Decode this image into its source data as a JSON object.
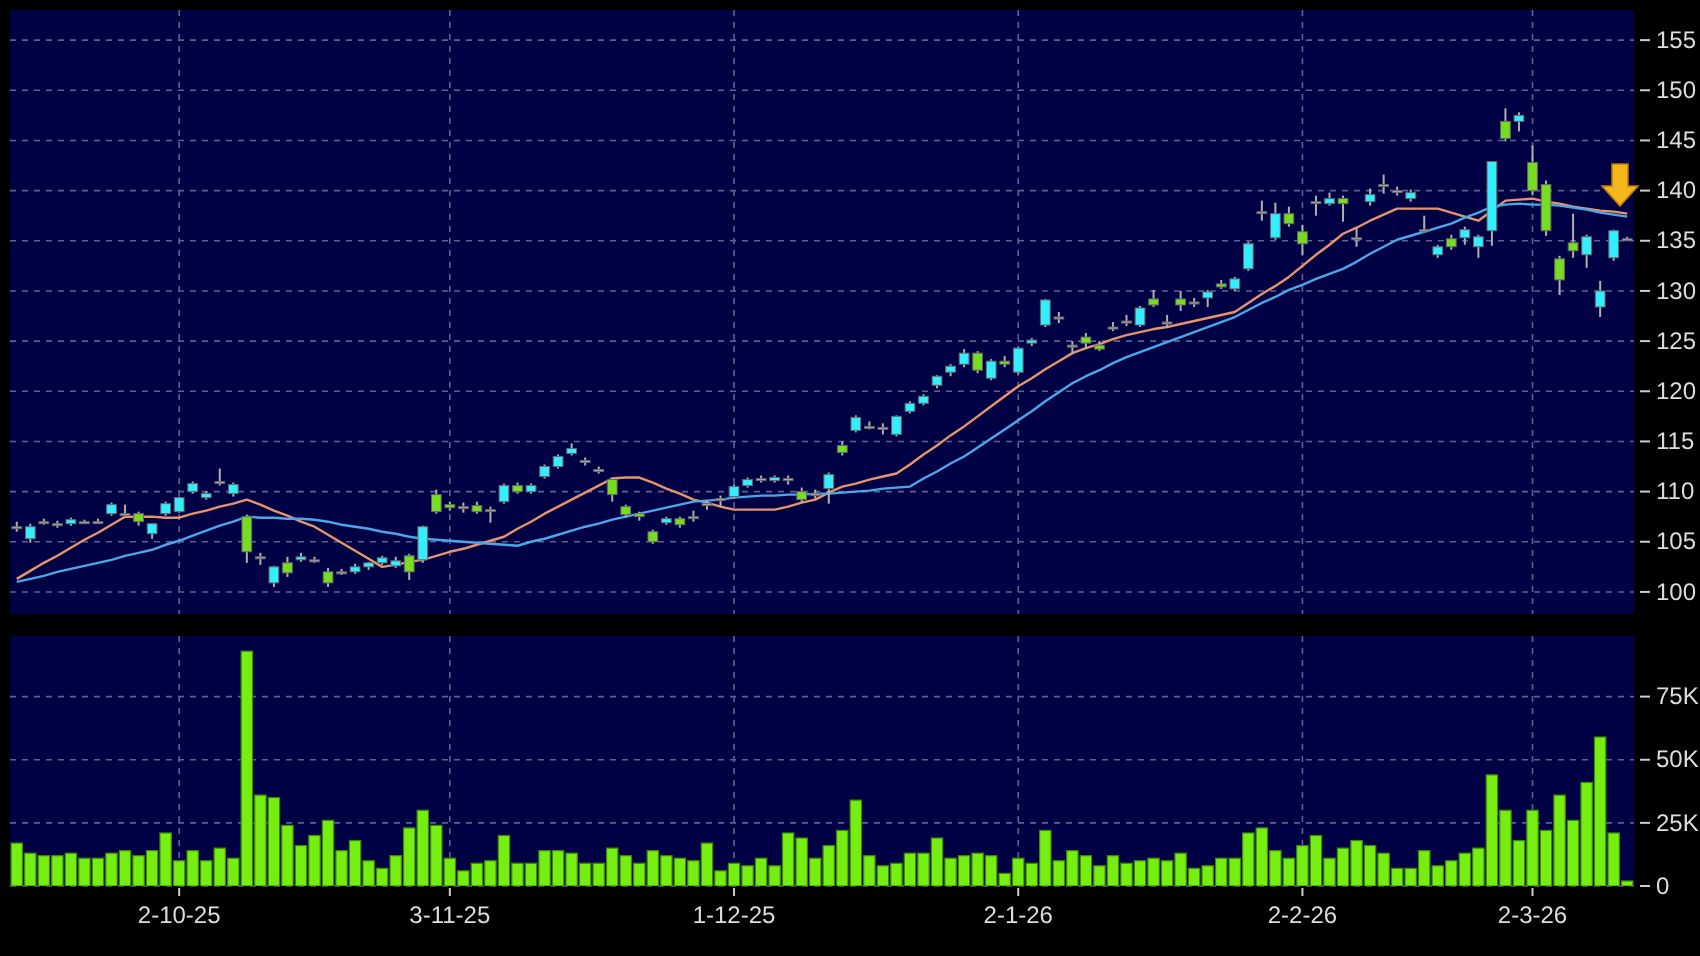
{
  "chart_data": [
    {
      "type": "candlestick",
      "tick_labels": "y",
      "grid": true,
      "categories": [
        null,
        null,
        null,
        null,
        null,
        null,
        null,
        null,
        null,
        null,
        null,
        null,
        null,
        null,
        null,
        null,
        null,
        null,
        null,
        null,
        null,
        null,
        null,
        null,
        null,
        null,
        null,
        null,
        null,
        null,
        null,
        null,
        null,
        null,
        null,
        null,
        null,
        null,
        null,
        null,
        null,
        null,
        null,
        null,
        null,
        null,
        null,
        null,
        null,
        null,
        null,
        null,
        null,
        null,
        null,
        null,
        null,
        null,
        null,
        null,
        null,
        null,
        null,
        null,
        null,
        null,
        null,
        null,
        null,
        null,
        null,
        null,
        null,
        null,
        null,
        null,
        null,
        null,
        null,
        null,
        null,
        null,
        null,
        null,
        null,
        null,
        null,
        null,
        null,
        null,
        null,
        null,
        null,
        null,
        null,
        null,
        null,
        null,
        null,
        null,
        null,
        null,
        null,
        null,
        null,
        null,
        null,
        null,
        null,
        null,
        null,
        null,
        null,
        null,
        null,
        null,
        null,
        null,
        null,
        null
      ],
      "ylim": [
        97.8,
        158
      ],
      "yticks": [
        100,
        105,
        110,
        115,
        120,
        125,
        130,
        135,
        140,
        145,
        150,
        155
      ],
      "ohlc": [
        [
          106.5,
          107,
          106,
          106.5
        ],
        [
          105.3,
          106.8,
          104.9,
          106.5
        ],
        [
          107,
          107.3,
          106.7,
          107
        ],
        [
          106.8,
          107.1,
          106.4,
          106.8
        ],
        [
          106.8,
          107.4,
          106.6,
          107.2
        ],
        [
          107,
          107.2,
          106.8,
          107
        ],
        [
          107,
          107.3,
          106.8,
          107
        ],
        [
          107.8,
          108.9,
          107.6,
          108.7
        ],
        [
          107.8,
          108.7,
          107.5,
          107.8
        ],
        [
          107.8,
          108,
          106.6,
          107
        ],
        [
          105.8,
          106.8,
          105.3,
          106.8
        ],
        [
          107.8,
          109,
          107.6,
          108.8
        ],
        [
          108,
          109.5,
          107.9,
          109.4
        ],
        [
          110,
          111,
          109.8,
          110.8
        ],
        [
          109.4,
          110,
          109.2,
          109.8
        ],
        [
          111,
          112.3,
          110.6,
          111
        ],
        [
          109.8,
          110.9,
          109.5,
          110.7
        ],
        [
          107.5,
          107.7,
          102.9,
          104
        ],
        [
          103.5,
          103.9,
          102.7,
          103.5
        ],
        [
          100.9,
          102.6,
          100.5,
          102.5
        ],
        [
          102.9,
          103.5,
          101.5,
          101.9
        ],
        [
          103.2,
          103.9,
          103,
          103.5
        ],
        [
          103.2,
          103.5,
          102.9,
          103.2
        ],
        [
          102,
          102.4,
          100.5,
          100.9
        ],
        [
          102,
          102.3,
          101.7,
          102
        ],
        [
          102,
          102.8,
          101.8,
          102.5
        ],
        [
          102.5,
          103,
          102.2,
          102.9
        ],
        [
          102.9,
          103.6,
          102.7,
          103.4
        ],
        [
          102.6,
          103.5,
          102.4,
          103.1
        ],
        [
          103.6,
          103.8,
          101.2,
          102
        ],
        [
          103.2,
          106.6,
          102.9,
          106.5
        ],
        [
          109.7,
          110.2,
          107.8,
          108
        ],
        [
          108.7,
          109,
          108.1,
          108.4
        ],
        [
          108.5,
          108.9,
          107.9,
          108.5
        ],
        [
          108.6,
          109,
          107.8,
          108
        ],
        [
          108.2,
          108.5,
          106.9,
          108.2
        ],
        [
          109,
          110.8,
          108.8,
          110.6
        ],
        [
          110.6,
          110.9,
          109.8,
          110
        ],
        [
          110,
          110.8,
          109.8,
          110.6
        ],
        [
          111.5,
          112.7,
          111.3,
          112.5
        ],
        [
          112.5,
          113.7,
          112.3,
          113.5
        ],
        [
          113.8,
          114.8,
          113.6,
          114.3
        ],
        [
          113.1,
          113.4,
          112.6,
          113.1
        ],
        [
          112.2,
          112.5,
          111.8,
          112.2
        ],
        [
          111.2,
          111.4,
          109,
          109.7
        ],
        [
          108.5,
          108.7,
          107.4,
          107.7
        ],
        [
          107.8,
          108,
          107.1,
          107.5
        ],
        [
          106,
          106.2,
          104.8,
          105
        ],
        [
          106.9,
          107.5,
          106.7,
          107.3
        ],
        [
          107.3,
          107.5,
          106.4,
          106.7
        ],
        [
          107.5,
          108.1,
          107,
          107.5
        ],
        [
          108.8,
          109.1,
          108.2,
          108.8
        ],
        [
          109.3,
          109.6,
          108.5,
          109.3
        ],
        [
          109.5,
          110.7,
          109.3,
          110.5
        ],
        [
          110.6,
          111.4,
          110.4,
          111.2
        ],
        [
          111.3,
          111.6,
          110.9,
          111.3
        ],
        [
          111.1,
          111.6,
          110.9,
          111.4
        ],
        [
          111.3,
          111.6,
          110.7,
          111.3
        ],
        [
          110,
          110.4,
          108.9,
          109.2
        ],
        [
          109.8,
          110.2,
          109.3,
          109.8
        ],
        [
          110.3,
          111.9,
          108.8,
          111.7
        ],
        [
          114.6,
          115,
          113.6,
          113.9
        ],
        [
          116.1,
          117.6,
          115.9,
          117.4
        ],
        [
          116.5,
          117,
          116.2,
          116.5
        ],
        [
          116.4,
          116.8,
          115.7,
          116.4
        ],
        [
          115.7,
          117.6,
          115.5,
          117.5
        ],
        [
          118,
          119,
          117.8,
          118.8
        ],
        [
          118.8,
          119.7,
          118.6,
          119.5
        ],
        [
          120.6,
          121.6,
          120.3,
          121.5
        ],
        [
          121.9,
          122.7,
          121.5,
          122.5
        ],
        [
          122.7,
          124.2,
          122.4,
          123.8
        ],
        [
          123.8,
          124,
          121.8,
          122.1
        ],
        [
          121.3,
          123.2,
          121.1,
          123
        ],
        [
          123,
          123.5,
          122.4,
          122.7
        ],
        [
          121.9,
          124.4,
          121.7,
          124.3
        ],
        [
          124.8,
          125.3,
          124.5,
          125.1
        ],
        [
          126.6,
          129.2,
          126.4,
          129.1
        ],
        [
          127.4,
          127.9,
          126.8,
          127.4
        ],
        [
          124.6,
          125,
          123.7,
          124.6
        ],
        [
          125.4,
          125.8,
          124.2,
          124.8
        ],
        [
          124.6,
          125,
          124,
          124.2
        ],
        [
          126.4,
          126.9,
          126,
          126.4
        ],
        [
          127,
          127.6,
          126.5,
          127
        ],
        [
          126.6,
          128.5,
          126.4,
          128.3
        ],
        [
          129.2,
          130.1,
          128.4,
          128.6
        ],
        [
          126.9,
          127.6,
          126.3,
          126.9
        ],
        [
          129.2,
          130,
          128,
          128.6
        ],
        [
          128.9,
          129.3,
          128.4,
          128.9
        ],
        [
          129.3,
          130.1,
          128.4,
          129.9
        ],
        [
          130.7,
          131.1,
          130.2,
          130.4
        ],
        [
          130.2,
          131.4,
          130,
          131.2
        ],
        [
          132.2,
          134.9,
          132,
          134.7
        ],
        [
          137.9,
          139,
          137,
          137.9
        ],
        [
          135.3,
          138.8,
          135.1,
          137.7
        ],
        [
          137.7,
          138.4,
          136.4,
          136.7
        ],
        [
          135.9,
          136.6,
          133.6,
          134.7
        ],
        [
          138.9,
          139.5,
          137.5,
          138.9
        ],
        [
          138.7,
          139.8,
          138.5,
          139.2
        ],
        [
          139.2,
          139.5,
          136.9,
          138.7
        ],
        [
          135.3,
          136.3,
          134.4,
          135.3
        ],
        [
          138.9,
          140.2,
          138.5,
          139.6
        ],
        [
          140.6,
          141.6,
          139.7,
          140.6
        ],
        [
          140,
          140.4,
          139.5,
          140
        ],
        [
          139.2,
          140.1,
          138.9,
          139.8
        ],
        [
          136.1,
          137.5,
          135.9,
          136.1
        ],
        [
          133.6,
          134.6,
          133.3,
          134.4
        ],
        [
          135.2,
          135.6,
          134.1,
          134.4
        ],
        [
          135.3,
          136.4,
          134.6,
          136.1
        ],
        [
          134.4,
          135.6,
          133.3,
          135.4
        ],
        [
          136,
          142.9,
          134.5,
          142.9
        ],
        [
          146.9,
          148.2,
          144.9,
          145.2
        ],
        [
          146.9,
          147.8,
          145.9,
          147.5
        ],
        [
          142.8,
          144.5,
          139.6,
          140
        ],
        [
          140.6,
          141,
          135.5,
          136
        ],
        [
          133.2,
          133.5,
          129.6,
          131.1
        ],
        [
          134.8,
          137.7,
          133.3,
          134
        ],
        [
          133.6,
          135.6,
          132.3,
          135.4
        ],
        [
          128.4,
          131,
          127.4,
          130
        ],
        [
          133.3,
          136.1,
          133,
          136
        ],
        [
          135.2,
          135.4,
          135,
          135.2
        ]
      ],
      "colors": [
        "#aaaaaa",
        "#33eeff",
        "#aaaaaa",
        "#aaaaaa",
        "#33eeff",
        "#aaaaaa",
        "#aaaaaa",
        "#33eeff",
        "#aaaaaa",
        "#77dd22",
        "#33eeff",
        "#33eeff",
        "#33eeff",
        "#33eeff",
        "#33eeff",
        "#aaaaaa",
        "#33eeff",
        "#77dd22",
        "#aaaaaa",
        "#33eeff",
        "#77dd22",
        "#33eeff",
        "#aaaaaa",
        "#77dd22",
        "#aaaaaa",
        "#33eeff",
        "#33eeff",
        "#33eeff",
        "#33eeff",
        "#77dd22",
        "#33eeff",
        "#77dd22",
        "#77dd22",
        "#aaaaaa",
        "#77dd22",
        "#aaaaaa",
        "#33eeff",
        "#77dd22",
        "#33eeff",
        "#33eeff",
        "#33eeff",
        "#33eeff",
        "#aaaaaa",
        "#aaaaaa",
        "#77dd22",
        "#77dd22",
        "#77dd22",
        "#77dd22",
        "#33eeff",
        "#77dd22",
        "#aaaaaa",
        "#aaaaaa",
        "#aaaaaa",
        "#33eeff",
        "#33eeff",
        "#aaaaaa",
        "#33eeff",
        "#aaaaaa",
        "#77dd22",
        "#aaaaaa",
        "#33eeff",
        "#77dd22",
        "#33eeff",
        "#aaaaaa",
        "#aaaaaa",
        "#33eeff",
        "#33eeff",
        "#33eeff",
        "#33eeff",
        "#33eeff",
        "#33eeff",
        "#77dd22",
        "#33eeff",
        "#77dd22",
        "#33eeff",
        "#33eeff",
        "#33eeff",
        "#aaaaaa",
        "#aaaaaa",
        "#77dd22",
        "#77dd22",
        "#aaaaaa",
        "#aaaaaa",
        "#33eeff",
        "#77dd22",
        "#aaaaaa",
        "#77dd22",
        "#aaaaaa",
        "#33eeff",
        "#77dd22",
        "#33eeff",
        "#33eeff",
        "#aaaaaa",
        "#33eeff",
        "#77dd22",
        "#77dd22",
        "#aaaaaa",
        "#33eeff",
        "#77dd22",
        "#aaaaaa",
        "#33eeff",
        "#aaaaaa",
        "#aaaaaa",
        "#33eeff",
        "#aaaaaa",
        "#33eeff",
        "#77dd22",
        "#33eeff",
        "#33eeff",
        "#33eeff",
        "#77dd22",
        "#33eeff",
        "#77dd22",
        "#77dd22",
        "#77dd22",
        "#77dd22",
        "#33eeff",
        "#33eeff",
        "#33eeff",
        "#aaaaaa"
      ],
      "series": [
        {
          "type": "line",
          "color": "#e8946a",
          "values": [
            101.3,
            102.1,
            102.9,
            103.6,
            104.4,
            105.2,
            105.9,
            106.7,
            107.5,
            107.5,
            107.5,
            107.4,
            107.4,
            107.8,
            108.1,
            108.5,
            108.8,
            109.2,
            108.7,
            108.1,
            107.6,
            107.0,
            106.5,
            105.7,
            104.9,
            104.1,
            103.3,
            102.5,
            102.7,
            103.0,
            103.2,
            103.6,
            104.0,
            104.3,
            104.7,
            105.1,
            105.5,
            106.3,
            107.0,
            107.8,
            108.5,
            109.2,
            109.9,
            110.6,
            111.3,
            111.4,
            111.4,
            110.9,
            110.3,
            109.8,
            109.2,
            108.9,
            108.5,
            108.2,
            108.2,
            108.2,
            108.2,
            108.5,
            108.9,
            109.2,
            109.9,
            110.5,
            110.8,
            111.2,
            111.5,
            111.8,
            112.7,
            113.7,
            114.6,
            115.6,
            116.5,
            117.5,
            118.5,
            119.5,
            120.5,
            121.3,
            122.2,
            123.0,
            123.8,
            124.3,
            124.7,
            125.2,
            125.6,
            125.9,
            126.2,
            126.4,
            126.7,
            127.0,
            127.3,
            127.6,
            127.9,
            128.8,
            129.7,
            130.5,
            131.4,
            132.5,
            133.6,
            134.6,
            135.7,
            136.3,
            137.0,
            137.6,
            138.2,
            138.2,
            138.2,
            138.2,
            137.8,
            137.4,
            137.0,
            138.0,
            139.0,
            139.1,
            139.2,
            138.9,
            138.7,
            138.4,
            138.2,
            138.0,
            137.9,
            137.7
          ]
        },
        {
          "type": "line",
          "color": "#4aa8e8",
          "values": [
            101.0,
            101.3,
            101.6,
            102.0,
            102.3,
            102.6,
            102.9,
            103.2,
            103.6,
            103.9,
            104.2,
            104.7,
            105.1,
            105.6,
            106.1,
            106.6,
            107.0,
            107.5,
            107.4,
            107.4,
            107.3,
            107.3,
            107.2,
            107.0,
            106.7,
            106.5,
            106.3,
            106.0,
            105.8,
            105.5,
            105.3,
            105.2,
            105.1,
            105.0,
            104.9,
            104.8,
            104.7,
            104.6,
            105.0,
            105.3,
            105.7,
            106.1,
            106.5,
            106.8,
            107.2,
            107.5,
            107.8,
            108.1,
            108.4,
            108.7,
            109.0,
            109.1,
            109.2,
            109.4,
            109.5,
            109.6,
            109.6,
            109.7,
            109.7,
            109.8,
            109.8,
            109.9,
            110.0,
            110.1,
            110.3,
            110.4,
            110.5,
            111.3,
            112.0,
            112.8,
            113.5,
            114.4,
            115.3,
            116.2,
            117.1,
            118.0,
            119.0,
            119.9,
            120.8,
            121.5,
            122.1,
            122.8,
            123.4,
            123.9,
            124.4,
            124.9,
            125.4,
            125.9,
            126.4,
            126.9,
            127.4,
            128.1,
            128.8,
            129.4,
            130.1,
            130.6,
            131.2,
            131.7,
            132.2,
            132.9,
            133.7,
            134.4,
            135.1,
            135.5,
            135.9,
            136.3,
            136.7,
            137.3,
            137.8,
            138.4,
            138.6,
            138.7,
            138.6,
            138.6,
            138.5,
            138.3,
            138.1,
            137.8,
            137.6,
            137.4
          ]
        }
      ]
    },
    {
      "type": "bar",
      "grid": true,
      "color": "#77ee11",
      "categories": [
        null,
        null,
        null,
        null,
        null,
        null,
        null,
        null,
        null,
        null,
        null,
        null,
        "2-10-25",
        null,
        null,
        null,
        null,
        null,
        null,
        null,
        null,
        null,
        null,
        null,
        null,
        null,
        null,
        null,
        null,
        null,
        null,
        null,
        "3-11-25",
        null,
        null,
        null,
        null,
        null,
        null,
        null,
        null,
        null,
        null,
        null,
        null,
        null,
        null,
        null,
        null,
        null,
        null,
        null,
        null,
        "1-12-25",
        null,
        null,
        null,
        null,
        null,
        null,
        null,
        null,
        null,
        null,
        null,
        null,
        null,
        null,
        null,
        null,
        null,
        null,
        null,
        null,
        "2-1-26",
        null,
        null,
        null,
        null,
        null,
        null,
        null,
        null,
        null,
        null,
        null,
        null,
        null,
        null,
        null,
        null,
        null,
        null,
        null,
        null,
        "2-2-26",
        null,
        null,
        null,
        null,
        null,
        null,
        null,
        null,
        null,
        null,
        null,
        null,
        null,
        null,
        null,
        null,
        "2-3-26",
        null,
        null,
        null,
        null,
        null,
        null,
        null
      ],
      "ylim": [
        0,
        99000
      ],
      "yticks": [
        0,
        {
          "value": 25000,
          "label": "25K"
        },
        {
          "value": 50000,
          "label": "50K"
        },
        {
          "value": 75000,
          "label": "75K"
        }
      ],
      "values": [
        17000,
        13000,
        12000,
        12000,
        13000,
        11000,
        11000,
        13000,
        14000,
        12000,
        14000,
        21000,
        10000,
        14000,
        10000,
        15000,
        11000,
        93000,
        36000,
        35000,
        24000,
        16000,
        20000,
        26000,
        14000,
        18000,
        10000,
        7000,
        12000,
        23000,
        30000,
        24000,
        11000,
        6000,
        9000,
        10000,
        20000,
        9000,
        9000,
        14000,
        14000,
        13000,
        9000,
        9000,
        15000,
        12000,
        9000,
        14000,
        12000,
        11000,
        10000,
        17000,
        6000,
        9000,
        8000,
        11000,
        8000,
        21000,
        19000,
        11000,
        16000,
        22000,
        34000,
        12000,
        8000,
        9000,
        13000,
        13000,
        19000,
        11000,
        12000,
        13000,
        12000,
        5000,
        11000,
        9000,
        22000,
        10000,
        14000,
        12000,
        8000,
        12000,
        9000,
        10000,
        11000,
        10000,
        13000,
        7000,
        8000,
        11000,
        11000,
        21000,
        23000,
        14000,
        11000,
        16000,
        20000,
        11000,
        15000,
        18000,
        16000,
        13000,
        7000,
        7000,
        14000,
        8000,
        10000,
        13000,
        15000,
        44000,
        30000,
        18000,
        30000,
        22000,
        36000,
        26000,
        41000,
        59000,
        21000,
        2000
      ]
    }
  ]
}
